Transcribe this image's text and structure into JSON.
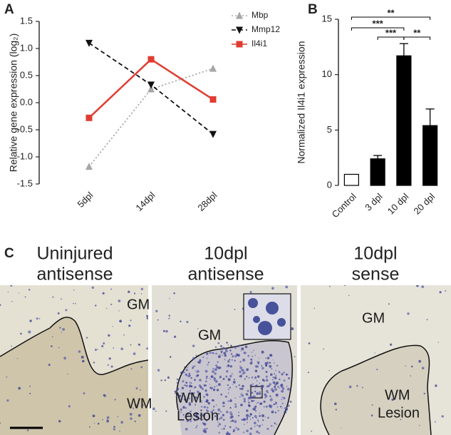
{
  "panel_labels": [
    "A",
    "B",
    "C"
  ],
  "chart_data": [
    {
      "type": "line",
      "ylabel": "Relative gene expression (log₂)",
      "categories": [
        "5dpl",
        "14dpl",
        "28dpl"
      ],
      "series": [
        {
          "name": "Mbp",
          "color": "#a6a6a6",
          "line_style": "dotted",
          "marker": "triangle-up",
          "values": [
            -1.18,
            0.25,
            0.63
          ]
        },
        {
          "name": "Mmp12",
          "color": "#111111",
          "line_style": "dashed",
          "marker": "triangle-down",
          "values": [
            1.1,
            0.33,
            -0.58
          ]
        },
        {
          "name": "Il4i1",
          "color": "#e03c31",
          "line_style": "solid",
          "marker": "square",
          "values": [
            -0.28,
            0.8,
            0.06
          ]
        }
      ],
      "ylim": [
        -1.5,
        1.5
      ],
      "yticks": [
        -1.5,
        {
          "value": -1,
          "label": "-1.0"
        },
        -0.5,
        {
          "value": 0,
          "label": "0.0"
        },
        0.5,
        {
          "value": 1,
          "label": "1.0"
        },
        1.5
      ],
      "legend": "top-right"
    },
    {
      "type": "bar",
      "ylabel": "Normalized Il4i1 expression",
      "categories": [
        "Control",
        "3 dpl",
        "10 dpl",
        "20 dpl"
      ],
      "values": [
        1,
        2.4,
        11.7,
        5.4
      ],
      "errors": [
        0,
        0.3,
        1.1,
        1.5
      ],
      "colors": [
        "#ffffff",
        "#000000",
        "#000000",
        "#000000"
      ],
      "ylim": [
        0,
        15
      ],
      "yticks": [
        0,
        5,
        10,
        15
      ],
      "significance": [
        {
          "between": [
            "Control",
            "20 dpl"
          ],
          "label": "**"
        },
        {
          "between": [
            "Control",
            "10 dpl"
          ],
          "label": "***"
        },
        {
          "between": [
            "3 dpl",
            "10 dpl"
          ],
          "label": "***"
        },
        {
          "between": [
            "10 dpl",
            "20 dpl"
          ],
          "label": "**"
        }
      ]
    }
  ],
  "images": [
    {
      "title": [
        "Uninjured",
        "antisense"
      ],
      "labels": [
        "GM",
        "WM"
      ]
    },
    {
      "title": [
        "10dpl",
        "antisense"
      ],
      "labels": [
        "GM",
        "WM",
        "Lesion"
      ]
    },
    {
      "title": [
        "10dpl",
        "sense"
      ],
      "labels": [
        "GM",
        "WM",
        "Lesion"
      ]
    }
  ]
}
